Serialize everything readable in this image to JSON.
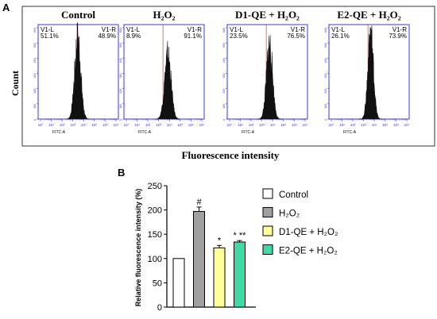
{
  "panel_a": {
    "label": "A",
    "ylabel": "Count",
    "xlabel": "Fluorescence intensity",
    "axis_label": "FITC-A",
    "gate_left": "V1-L",
    "gate_right": "V1-R",
    "yticks": [
      "0",
      "100",
      "200",
      "300",
      "400",
      "500",
      "600"
    ],
    "xticks": [
      "10°",
      "10¹",
      "10²",
      "10³",
      "10⁴",
      "10⁵",
      "10⁶",
      "10⁷"
    ],
    "histograms": [
      {
        "title": "Control",
        "left_pct": "51.1%",
        "right_pct": "48.9%",
        "peak_log": 3.45,
        "peak_height": 530,
        "width": 0.28
      },
      {
        "title": "H₂O₂",
        "left_pct": "8.9%",
        "right_pct": "91.1%",
        "peak_log": 3.85,
        "peak_height": 420,
        "width": 0.3
      },
      {
        "title": "D1-QE + H₂O₂",
        "left_pct": "23.5%",
        "right_pct": "76.5%",
        "peak_log": 3.7,
        "peak_height": 490,
        "width": 0.28
      },
      {
        "title": "E2-QE + H₂O₂",
        "left_pct": "26.1%",
        "right_pct": "73.9%",
        "peak_log": 3.65,
        "peak_height": 560,
        "width": 0.26
      }
    ]
  },
  "chart_data": {
    "type": "bar",
    "label": "B",
    "ylabel": "Relative fluorescence intensity (%)",
    "ylim": [
      0,
      250
    ],
    "yticks": [
      0,
      50,
      100,
      150,
      200,
      250
    ],
    "categories": [
      "Control",
      "H₂O₂",
      "D1-QE + H₂O₂",
      "E2-QE + H₂O₂"
    ],
    "values": [
      100,
      197,
      122,
      134
    ],
    "errors": [
      0,
      9,
      5,
      3
    ],
    "annotations": [
      "",
      "#",
      "*",
      "* **"
    ],
    "colors": [
      "#ffffff",
      "#a0a0a0",
      "#ffff99",
      "#3fd9a8"
    ],
    "legend": [
      "Control",
      "H₂O₂",
      "D1-QE + H₂O₂",
      "E2-QE + H₂O₂"
    ]
  }
}
